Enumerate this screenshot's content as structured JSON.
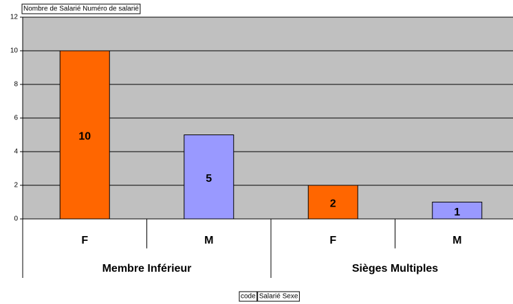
{
  "chart_data": {
    "type": "bar",
    "data_field": "Nombre de Salarié Numéro de salarié",
    "row_fields": [
      "code",
      "Salarié Sexe"
    ],
    "groups": [
      "Membre Inférieur",
      "Sièges Multiples"
    ],
    "categories": [
      "F",
      "M",
      "F",
      "M"
    ],
    "values": [
      10,
      5,
      2,
      1
    ],
    "colors": [
      "#FF6600",
      "#9999FF",
      "#FF6600",
      "#9999FF"
    ],
    "ylim": [
      0,
      12
    ],
    "yticks": [
      0,
      2,
      4,
      6,
      8,
      10,
      12
    ],
    "grid": true
  }
}
